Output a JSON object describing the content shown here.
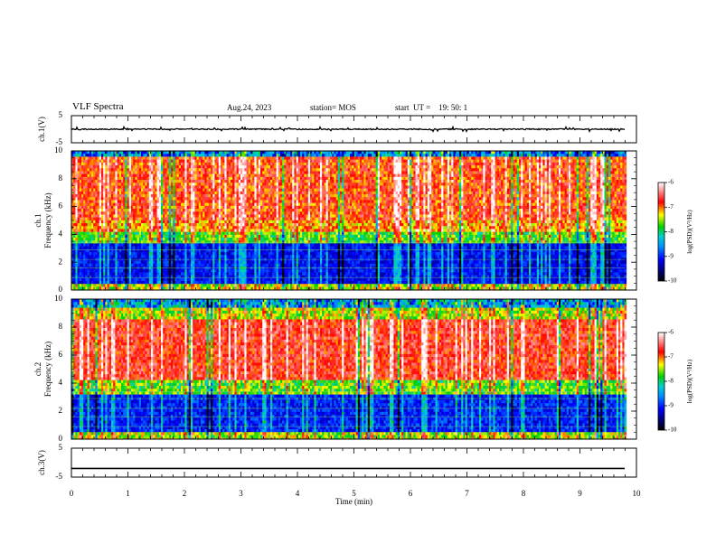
{
  "header": {
    "title": "VLF Spectra",
    "date": "Aug.24, 2023",
    "station": "station= MOS",
    "start_ut": "start  UT =    19: 50: 1"
  },
  "chart_data": [
    {
      "type": "line",
      "panel": "ch1-waveform",
      "ylabel": "ch.1(V)",
      "ylim": [
        -5,
        5
      ],
      "ytick_labels": [
        "5",
        "-5"
      ],
      "xlim": [
        0,
        10
      ],
      "x": [
        0,
        9.8
      ],
      "values": [
        0,
        0
      ]
    },
    {
      "type": "heatmap",
      "panel": "ch1-spectrogram",
      "ylabel_top": "ch.1",
      "ylabel": "Frequency (kHz)",
      "ylim": [
        0,
        10
      ],
      "ytick_labels": [
        "0",
        "2",
        "4",
        "6",
        "8",
        "10"
      ],
      "xlim": [
        0,
        10
      ],
      "data_xmax": 9.8,
      "colorbar": {
        "label": "log(PSD)(V²/Hz)",
        "range": [
          -10,
          -6
        ],
        "tick_labels": [
          "-6",
          "-7",
          "-8",
          "-9",
          "-10"
        ]
      }
    },
    {
      "type": "heatmap",
      "panel": "ch2-spectrogram",
      "ylabel_top": "ch.2",
      "ylabel": "Frequency (kHz)",
      "ylim": [
        0,
        10
      ],
      "ytick_labels": [
        "0",
        "2",
        "4",
        "6",
        "8",
        "10"
      ],
      "xlim": [
        0,
        10
      ],
      "data_xmax": 9.8,
      "colorbar": {
        "label": "log(PSD)(V²/Hz)",
        "range": [
          -10,
          -6
        ],
        "tick_labels": [
          "-6",
          "-7",
          "-8",
          "-9",
          "-10"
        ]
      }
    },
    {
      "type": "line",
      "panel": "ch3-waveform",
      "ylabel": "ch.3(V)",
      "ylim": [
        -5,
        5
      ],
      "ytick_labels": [
        "5",
        "-5"
      ],
      "xlim": [
        0,
        10
      ],
      "x": [
        0,
        9.8
      ],
      "values": [
        -2,
        -2
      ]
    }
  ],
  "xaxis": {
    "label": "Time (min)",
    "tick_labels": [
      "0",
      "1",
      "2",
      "3",
      "4",
      "5",
      "6",
      "7",
      "8",
      "9",
      "10"
    ]
  }
}
